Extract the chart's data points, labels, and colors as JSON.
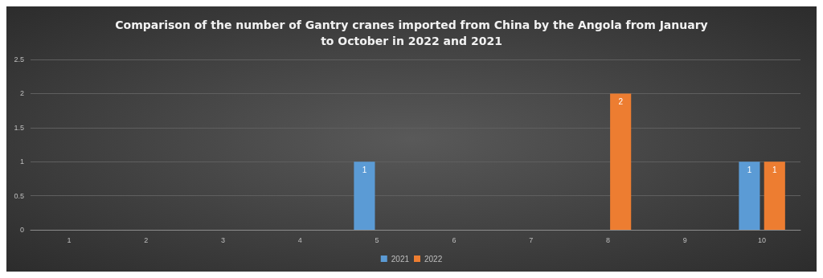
{
  "chart_data": {
    "type": "bar",
    "title": "Comparison of the number of Gantry cranes imported from China by the Angola from January\nto October in 2022 and 2021",
    "categories": [
      "1",
      "2",
      "3",
      "4",
      "5",
      "6",
      "7",
      "8",
      "9",
      "10"
    ],
    "series": [
      {
        "name": "2021",
        "color": "#5b9bd5",
        "values": [
          0,
          0,
          0,
          0,
          1,
          0,
          0,
          0,
          0,
          1
        ],
        "value_labels": [
          null,
          null,
          null,
          null,
          "1",
          null,
          null,
          null,
          null,
          "1"
        ]
      },
      {
        "name": "2022",
        "color": "#ed7d31",
        "values": [
          0,
          0,
          0,
          0,
          0,
          0,
          0,
          2,
          0,
          1
        ],
        "value_labels": [
          null,
          null,
          null,
          null,
          null,
          null,
          null,
          "2",
          null,
          "1"
        ]
      }
    ],
    "ylim": [
      0,
      2.5
    ],
    "yticks": [
      0,
      0.5,
      1,
      1.5,
      2,
      2.5
    ],
    "grid": "y",
    "legend": "bottom"
  }
}
